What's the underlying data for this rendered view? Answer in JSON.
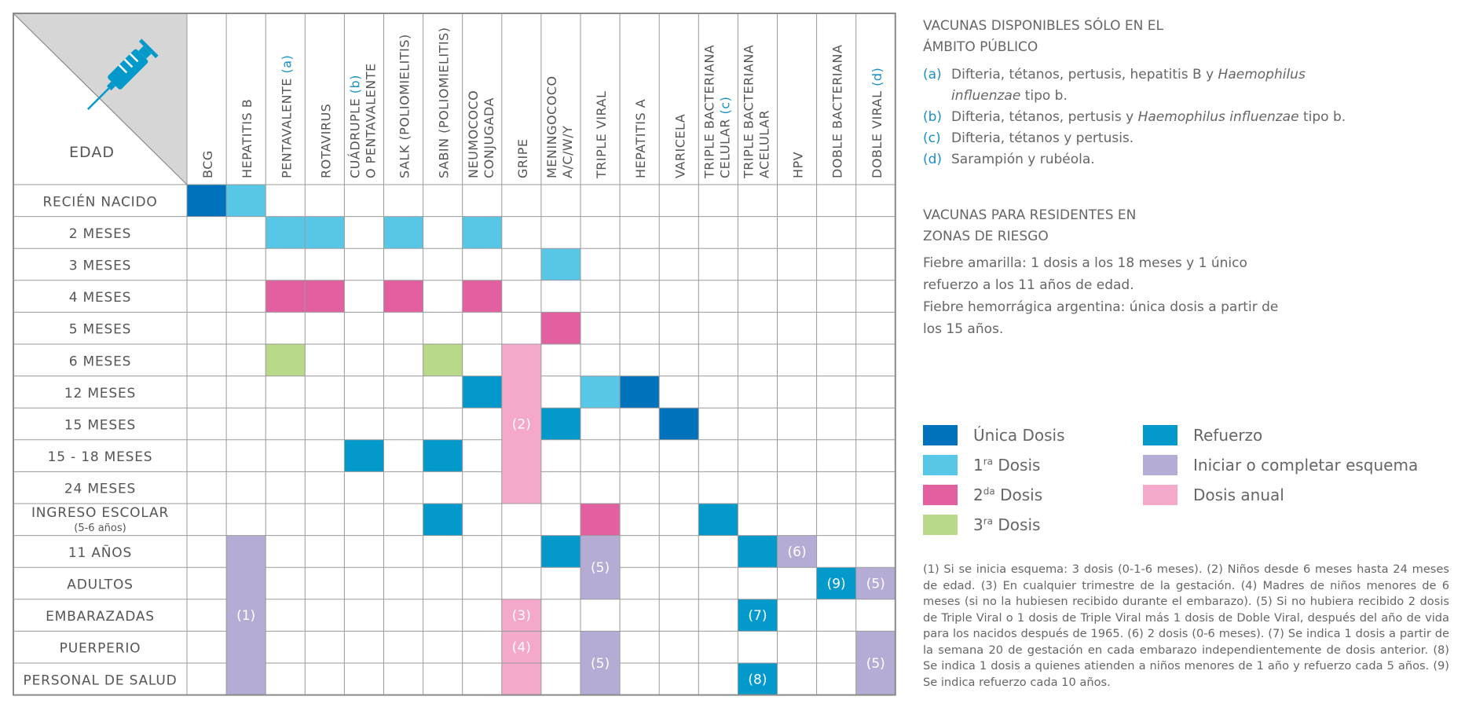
{
  "table": {
    "age_header": "EDAD",
    "vaccines": [
      {
        "name": "BCG"
      },
      {
        "name": "HEPATITIS B"
      },
      {
        "name": "PENTAVALENTE",
        "note": "(a)"
      },
      {
        "name": "ROTAVIRUS"
      },
      {
        "name": "CUÁDRUPLE",
        "note": "(b)",
        "line2": "O PENTAVALENTE"
      },
      {
        "name": "SALK (POLIOMIELITIS)"
      },
      {
        "name": "SABIN (POLIOMIELITIS)"
      },
      {
        "name": "NEUMOCOCO",
        "line2": "CONJUGADA"
      },
      {
        "name": "GRIPE"
      },
      {
        "name": "MENINGOCOCO",
        "line2": "A/C/W/Y"
      },
      {
        "name": "TRIPLE VIRAL"
      },
      {
        "name": "HEPATITIS A"
      },
      {
        "name": "VARICELA"
      },
      {
        "name": "TRIPLE BACTERIANA",
        "line2": "CELULAR",
        "note2": "(c)"
      },
      {
        "name": "TRIPLE BACTERIANA",
        "line2": "ACELULAR"
      },
      {
        "name": "HPV"
      },
      {
        "name": "DOBLE BACTERIANA"
      },
      {
        "name": "DOBLE VIRAL",
        "note": "(d)"
      }
    ],
    "ages": [
      {
        "label": "RECIÉN NACIDO"
      },
      {
        "label": "2 MESES"
      },
      {
        "label": "3 MESES"
      },
      {
        "label": "4 MESES"
      },
      {
        "label": "5 MESES"
      },
      {
        "label": "6 MESES"
      },
      {
        "label": "12 MESES"
      },
      {
        "label": "15 MESES"
      },
      {
        "label": "15 - 18 MESES"
      },
      {
        "label": "24 MESES"
      },
      {
        "label": "INGRESO ESCOLAR",
        "sub": "(5-6 años)"
      },
      {
        "label": "11 AÑOS"
      },
      {
        "label": "ADULTOS"
      },
      {
        "label": "EMBARAZADAS"
      },
      {
        "label": "PUERPERIO"
      },
      {
        "label": "PERSONAL DE SALUD"
      }
    ],
    "cells": [
      {
        "row": 0,
        "col": 0,
        "type": "unica"
      },
      {
        "row": 0,
        "col": 1,
        "type": "primera"
      },
      {
        "row": 1,
        "col": 2,
        "type": "primera"
      },
      {
        "row": 1,
        "col": 3,
        "type": "primera"
      },
      {
        "row": 1,
        "col": 5,
        "type": "primera"
      },
      {
        "row": 1,
        "col": 7,
        "type": "primera"
      },
      {
        "row": 2,
        "col": 9,
        "type": "primera"
      },
      {
        "row": 3,
        "col": 2,
        "type": "segunda"
      },
      {
        "row": 3,
        "col": 3,
        "type": "segunda"
      },
      {
        "row": 3,
        "col": 5,
        "type": "segunda"
      },
      {
        "row": 3,
        "col": 7,
        "type": "segunda"
      },
      {
        "row": 4,
        "col": 9,
        "type": "segunda"
      },
      {
        "row": 5,
        "col": 2,
        "type": "tercera"
      },
      {
        "row": 5,
        "col": 6,
        "type": "tercera"
      },
      {
        "row": 5,
        "col": 8,
        "type": "anual",
        "span": 5,
        "label": "(2)"
      },
      {
        "row": 6,
        "col": 7,
        "type": "refuerzo"
      },
      {
        "row": 6,
        "col": 10,
        "type": "primera"
      },
      {
        "row": 6,
        "col": 11,
        "type": "unica"
      },
      {
        "row": 7,
        "col": 9,
        "type": "refuerzo"
      },
      {
        "row": 7,
        "col": 12,
        "type": "unica"
      },
      {
        "row": 8,
        "col": 4,
        "type": "refuerzo"
      },
      {
        "row": 8,
        "col": 6,
        "type": "refuerzo"
      },
      {
        "row": 10,
        "col": 6,
        "type": "refuerzo"
      },
      {
        "row": 10,
        "col": 10,
        "type": "segunda"
      },
      {
        "row": 10,
        "col": 13,
        "type": "refuerzo"
      },
      {
        "row": 11,
        "col": 1,
        "type": "iniciar",
        "span": 5,
        "label": "(1)"
      },
      {
        "row": 11,
        "col": 9,
        "type": "refuerzo"
      },
      {
        "row": 11,
        "col": 10,
        "type": "iniciar",
        "span": 2,
        "label": "(5)"
      },
      {
        "row": 11,
        "col": 14,
        "type": "refuerzo"
      },
      {
        "row": 11,
        "col": 15,
        "type": "iniciar",
        "label": "(6)"
      },
      {
        "row": 12,
        "col": 16,
        "type": "refuerzo",
        "label": "(9)"
      },
      {
        "row": 12,
        "col": 17,
        "type": "iniciar",
        "label": "(5)"
      },
      {
        "row": 13,
        "col": 8,
        "type": "anual",
        "label": "(3)"
      },
      {
        "row": 13,
        "col": 14,
        "type": "refuerzo",
        "label": "(7)"
      },
      {
        "row": 14,
        "col": 8,
        "type": "anual",
        "label": "(4)"
      },
      {
        "row": 14,
        "col": 10,
        "type": "iniciar",
        "span": 2,
        "label": "(5)"
      },
      {
        "row": 14,
        "col": 17,
        "type": "iniciar",
        "span": 2,
        "label": "(5)"
      },
      {
        "row": 15,
        "col": 8,
        "type": "anual"
      },
      {
        "row": 15,
        "col": 14,
        "type": "refuerzo",
        "label": "(8)"
      }
    ]
  },
  "colors": {
    "unica": "#0072bc",
    "primera": "#58c7e7",
    "segunda": "#e2609f",
    "tercera": "#b8d98a",
    "refuerzo": "#0499cb",
    "iniciar": "#b5acd6",
    "anual": "#f4a9cb",
    "header_gray": "#d6d6d6",
    "note_blue": "#1a8fc2"
  },
  "public_only": {
    "title_line1": "VACUNAS DISPONIBLES SÓLO EN EL",
    "title_line2": "ÁMBITO PÚBLICO",
    "notes": [
      {
        "key": "(a)",
        "text1": "Difteria, tétanos, pertusis, hepatitis B y ",
        "italic1": "Haemophilus",
        "line2_italic": "influenzae",
        "line2_text": " tipo b."
      },
      {
        "key": "(b)",
        "text1": "Difteria, tétanos, pertusis y ",
        "italic1": "Haemophilus influenzae",
        "text2": " tipo b."
      },
      {
        "key": "(c)",
        "text1": "Difteria, tétanos y pertusis."
      },
      {
        "key": "(d)",
        "text1": "Sarampión y rubéola."
      }
    ]
  },
  "risk_zones": {
    "title_line1": "VACUNAS PARA RESIDENTES EN",
    "title_line2": "ZONAS DE RIESGO",
    "lines": [
      "Fiebre amarilla: 1 dosis a los 18 meses y 1 único",
      "refuerzo a los 11 años de edad.",
      "Fiebre hemorrágica argentina: única dosis a partir de",
      "los 15 años."
    ]
  },
  "legend": {
    "unica": "Única Dosis",
    "primera_num": "1",
    "primera_sup": "ra",
    "primera_rest": " Dosis",
    "segunda_num": "2",
    "segunda_sup": "da",
    "segunda_rest": " Dosis",
    "tercera_num": "3",
    "tercera_sup": "ra",
    "tercera_rest": " Dosis",
    "refuerzo": "Refuerzo",
    "iniciar": "Iniciar o completar esquema",
    "anual": "Dosis anual"
  },
  "footnotes": "(1) Si se inicia esquema: 3 dosis (0-1-6 meses). (2) Niños desde 6 meses hasta 24 meses de edad. (3) En cualquier trimestre de la gestación. (4) Madres de niños menores de 6 meses (si no la hubiesen recibido durante el embarazo). (5) Si no hubiera recibido 2 dosis de Triple Viral o 1 dosis de Triple Viral más 1 dosis de Doble Viral, después del año de vida para los nacidos después de 1965. (6) 2 dosis (0-6 meses). (7) Se indica 1 dosis a partir de la semana 20 de gestación en cada embarazo independientemente de dosis anterior. (8) Se indica 1 dosis a quienes atienden a niños menores de 1 año y refuerzo cada 5 años. (9) Se indica refuerzo cada 10 años."
}
